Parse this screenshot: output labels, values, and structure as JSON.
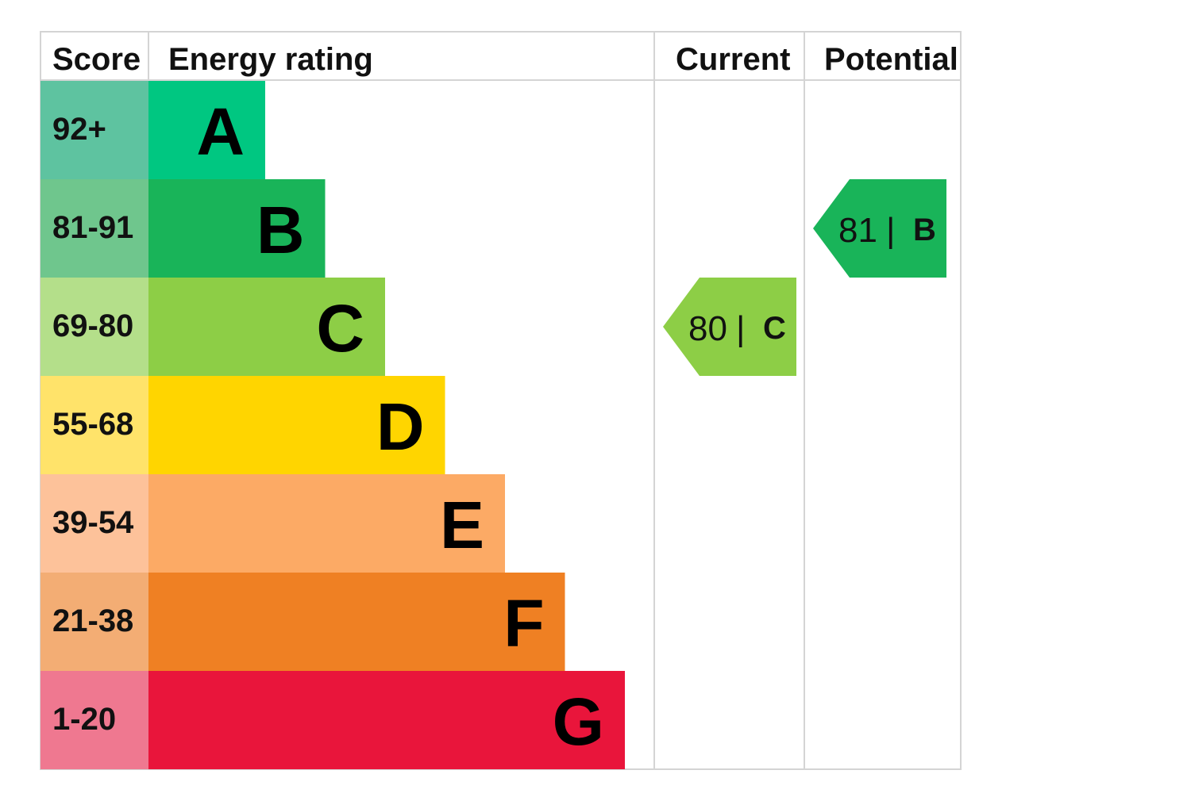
{
  "chart_data": {
    "type": "table",
    "headers": {
      "score": "Score",
      "rating": "Energy rating",
      "current": "Current",
      "potential": "Potential"
    },
    "bands": [
      {
        "score": "92+",
        "letter": "A",
        "color": "#00c781",
        "score_bg": "#5ec3a0"
      },
      {
        "score": "81-91",
        "letter": "B",
        "color": "#19b459",
        "score_bg": "#6fc68d"
      },
      {
        "score": "69-80",
        "letter": "C",
        "color": "#8dce46",
        "score_bg": "#b4df8a"
      },
      {
        "score": "55-68",
        "letter": "D",
        "color": "#ffd500",
        "score_bg": "#ffe36a"
      },
      {
        "score": "39-54",
        "letter": "E",
        "color": "#fcaa65",
        "score_bg": "#fdc29a"
      },
      {
        "score": "21-38",
        "letter": "F",
        "color": "#ef8023",
        "score_bg": "#f3ad74"
      },
      {
        "score": "1-20",
        "letter": "G",
        "color": "#e9153b",
        "score_bg": "#ef7890"
      }
    ],
    "current": {
      "value": 80,
      "letter": "C",
      "separator": "|",
      "color": "#8dce46"
    },
    "potential": {
      "value": 81,
      "letter": "B",
      "separator": "|",
      "color": "#19b459"
    }
  }
}
